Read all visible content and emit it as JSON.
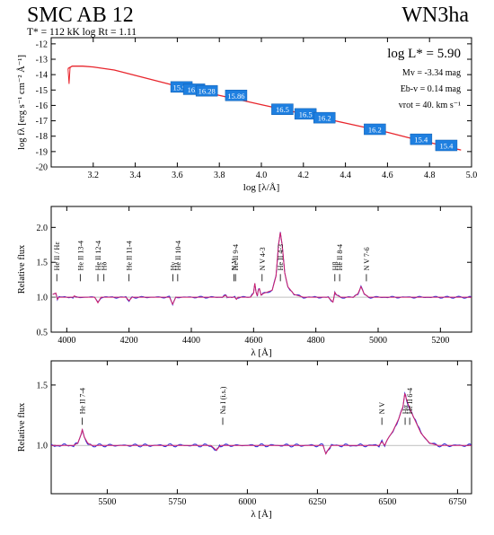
{
  "header": {
    "star_name": "SMC AB 12",
    "spectral_type": "WN3ha",
    "params": "T* = 112 kK   log Rt = 1.11"
  },
  "sed_panel": {
    "xlabel": "log [λ/Å]",
    "ylabel": "log fλ [erg s⁻¹ cm⁻² Å⁻¹]",
    "xlim": [
      3.0,
      5.0
    ],
    "ylim": [
      -20,
      -11.6
    ],
    "xticks": [
      3.2,
      3.4,
      3.6,
      3.8,
      4.0,
      4.2,
      4.4,
      4.6,
      4.8,
      5.0
    ],
    "yticks": [
      -12,
      -13,
      -14,
      -15,
      -16,
      -17,
      -18,
      -19,
      -20
    ],
    "annotations": {
      "lum": "log L* = 5.90",
      "mv": "Mv = -3.34 mag",
      "ebv": "Eb-v = 0.14 mag",
      "vrot": "vrot = 40. km s⁻¹"
    }
  },
  "norm1_panel": {
    "xlabel": "λ [Å]",
    "ylabel": "Relative flux",
    "xlim": [
      3950,
      5300
    ],
    "ylim": [
      0.5,
      2.3
    ],
    "xticks": [
      4000,
      4200,
      4400,
      4600,
      4800,
      5000,
      5200
    ],
    "yticks": [
      0.5,
      1.0,
      1.5,
      2.0
    ]
  },
  "norm2_panel": {
    "xlabel": "λ [Å]",
    "ylabel": "Relative flux",
    "xlim": [
      5300,
      6800
    ],
    "ylim": [
      0.6,
      1.7
    ],
    "xticks": [
      5500,
      5750,
      6000,
      6250,
      6500,
      6750
    ],
    "yticks": [
      1.0,
      1.5
    ]
  },
  "chart_data": [
    {
      "type": "line",
      "panel": "sed",
      "title": "",
      "xlabel": "log [λ/Å]",
      "ylabel": "log fλ [erg s⁻¹ cm⁻² Å⁻¹]",
      "xlim": [
        3.0,
        5.0
      ],
      "ylim": [
        -20,
        -11.6
      ],
      "series": [
        {
          "x": [
            3.08,
            3.1,
            3.15,
            3.2,
            3.3,
            3.4,
            3.5,
            3.6,
            3.7,
            3.8,
            3.9,
            4.0,
            4.1,
            4.2,
            4.3,
            4.4,
            4.5,
            4.6,
            4.7,
            4.8,
            4.9,
            4.95
          ],
          "y": [
            -13.6,
            -13.45,
            -13.45,
            -13.5,
            -13.7,
            -14.05,
            -14.4,
            -14.75,
            -15.05,
            -15.35,
            -15.65,
            -15.95,
            -16.25,
            -16.55,
            -16.85,
            -17.15,
            -17.45,
            -17.75,
            -18.1,
            -18.4,
            -18.75,
            -18.9
          ]
        }
      ],
      "photometry": [
        {
          "x": 3.62,
          "y": -14.8,
          "label": "15.99"
        },
        {
          "x": 3.68,
          "y": -14.95,
          "label": "16.1"
        },
        {
          "x": 3.74,
          "y": -15.05,
          "label": "16.28"
        },
        {
          "x": 3.88,
          "y": -15.35,
          "label": "15.86"
        },
        {
          "x": 4.1,
          "y": -16.25,
          "label": "16.5"
        },
        {
          "x": 4.21,
          "y": -16.55,
          "label": "16.5"
        },
        {
          "x": 4.3,
          "y": -16.8,
          "label": "16.2"
        },
        {
          "x": 4.54,
          "y": -17.55,
          "label": "16.2"
        },
        {
          "x": 4.76,
          "y": -18.2,
          "label": "15.4"
        },
        {
          "x": 4.88,
          "y": -18.6,
          "label": "15.4"
        }
      ]
    },
    {
      "type": "line",
      "panel": "norm1",
      "title": "",
      "xlabel": "λ [Å]",
      "ylabel": "Relative flux",
      "xlim": [
        3950,
        5300
      ],
      "ylim": [
        0.5,
        2.3
      ],
      "series": [
        {
          "x": [
            3955,
            3965,
            3970,
            3975,
            4000,
            4020,
            4025,
            4030,
            4090,
            4100,
            4110,
            4190,
            4200,
            4210,
            4330,
            4340,
            4350,
            4500,
            4510,
            4515,
            4520,
            4530,
            4540,
            4545,
            4550,
            4590,
            4600,
            4604,
            4608,
            4612,
            4615,
            4619,
            4624,
            4630,
            4660,
            4672,
            4680,
            4686,
            4692,
            4700,
            4710,
            4730,
            4760,
            4840,
            4855,
            4861,
            4867,
            4880,
            4920,
            4935,
            4945,
            4955,
            4970,
            5000,
            5200,
            5300
          ],
          "y": [
            1.04,
            1.06,
            0.97,
            1.0,
            1.0,
            1.0,
            1.02,
            1.0,
            1.0,
            0.92,
            1.0,
            1.0,
            0.95,
            1.0,
            1.0,
            0.9,
            1.0,
            1.0,
            1.03,
            1.0,
            1.0,
            1.0,
            1.0,
            0.97,
            1.0,
            1.0,
            1.06,
            1.2,
            1.07,
            1.02,
            1.1,
            1.12,
            1.03,
            1.05,
            1.1,
            1.3,
            1.75,
            1.93,
            1.75,
            1.35,
            1.15,
            1.04,
            1.0,
            1.0,
            0.93,
            1.07,
            1.03,
            1.0,
            1.0,
            1.05,
            1.15,
            1.05,
            1.0,
            1.0,
            1.0,
            1.0
          ]
        }
      ],
      "line_ids": [
        {
          "x": 3968,
          "label": "He II / Hε"
        },
        {
          "x": 4026,
          "label": "He II 13-4"
        },
        {
          "x": 4100,
          "label": "He II 12-4"
        },
        {
          "x": 4102,
          "label": "Hδ"
        },
        {
          "x": 4200,
          "label": "He II 11-4"
        },
        {
          "x": 4339,
          "label": "He II 10-4"
        },
        {
          "x": 4341,
          "label": "Hγ"
        },
        {
          "x": 4520,
          "label": "N V"
        },
        {
          "x": 4542,
          "label": "He II 9-4"
        },
        {
          "x": 4610,
          "label": "N V 4-3"
        },
        {
          "x": 4686,
          "label": "He II 4-3"
        },
        {
          "x": 4859,
          "label": "He II 8-4"
        },
        {
          "x": 4861,
          "label": "Hβ"
        },
        {
          "x": 4945,
          "label": "N V 7-6"
        }
      ]
    },
    {
      "type": "line",
      "panel": "norm2",
      "title": "",
      "xlabel": "λ [Å]",
      "ylabel": "Relative flux",
      "xlim": [
        5300,
        6800
      ],
      "ylim": [
        0.6,
        1.7
      ],
      "series": [
        {
          "x": [
            5300,
            5380,
            5395,
            5405,
            5411,
            5418,
            5430,
            5445,
            5600,
            5870,
            5890,
            5896,
            5905,
            6000,
            6270,
            6280,
            6290,
            6300,
            6470,
            6480,
            6490,
            6500,
            6520,
            6540,
            6555,
            6562,
            6568,
            6580,
            6600,
            6620,
            6650,
            6680,
            6800
          ],
          "y": [
            1.0,
            1.0,
            1.02,
            1.08,
            1.13,
            1.07,
            1.02,
            1.0,
            1.0,
            1.0,
            0.96,
            0.98,
            1.0,
            1.0,
            1.0,
            0.93,
            0.97,
            1.0,
            1.0,
            1.03,
            1.0,
            1.05,
            1.12,
            1.22,
            1.32,
            1.43,
            1.38,
            1.3,
            1.2,
            1.1,
            1.02,
            1.0,
            1.0
          ]
        }
      ],
      "line_ids": [
        {
          "x": 5411,
          "label": "He II 7-4"
        },
        {
          "x": 5893,
          "label": "Na I (i.s.)"
        },
        {
          "x": 6480,
          "label": "N V"
        },
        {
          "x": 6560,
          "label": "He II 6-4"
        },
        {
          "x": 6563,
          "label": "Hα"
        }
      ]
    }
  ]
}
